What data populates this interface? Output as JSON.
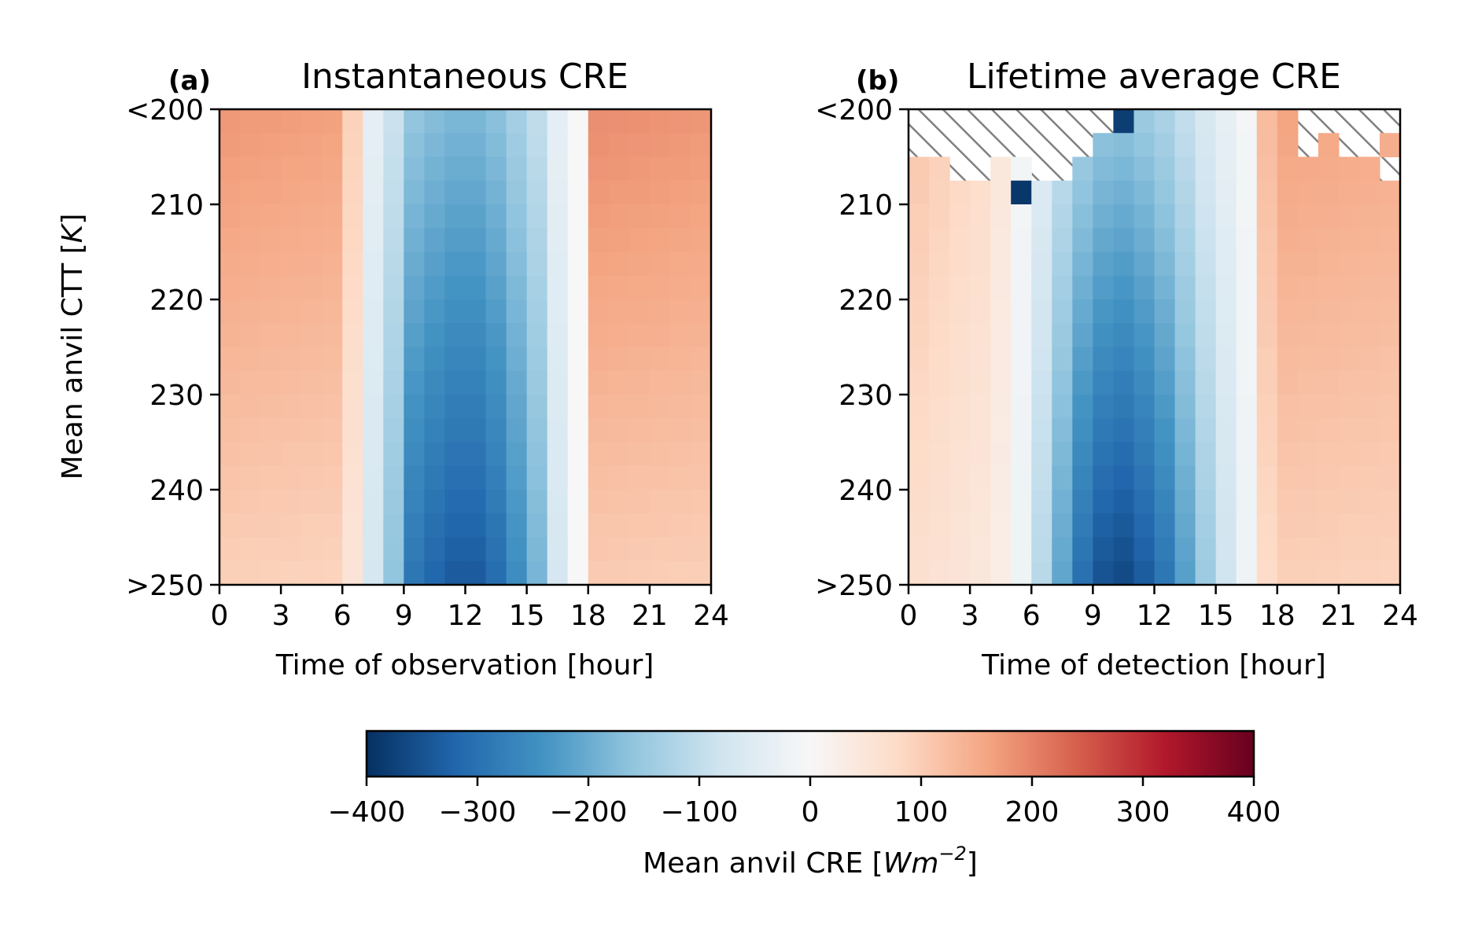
{
  "chart_data": [
    {
      "type": "heatmap",
      "panel_label": "(a)",
      "title": "Instantaneous CRE",
      "xlabel": "Time of observation [hour]",
      "ylabel": "Mean anvil CTT [K]",
      "xlim": [
        0,
        24
      ],
      "x_ticks": [
        "0",
        "3",
        "6",
        "9",
        "12",
        "15",
        "18",
        "21",
        "24"
      ],
      "y_ticks": [
        "<200",
        "210",
        "220",
        "230",
        "240",
        ">250"
      ],
      "x_bins": 24,
      "y_bins": 20,
      "bin_hours": 1,
      "ctt_range": [
        200,
        250
      ],
      "cmap_range": [
        -400,
        400
      ],
      "missing_rows": 0,
      "values": []
    },
    {
      "type": "heatmap",
      "panel_label": "(b)",
      "title": "Lifetime average CRE",
      "xlabel": "Time of detection [hour]",
      "ylabel": "",
      "xlim": [
        0,
        24
      ],
      "x_ticks": [
        "0",
        "3",
        "6",
        "9",
        "12",
        "15",
        "18",
        "21",
        "24"
      ],
      "y_ticks": [
        "<200",
        "210",
        "220",
        "230",
        "240",
        ">250"
      ],
      "x_bins": 24,
      "y_bins": 20,
      "bin_hours": 1,
      "ctt_range": [
        200,
        250
      ],
      "cmap_range": [
        -400,
        400
      ],
      "missing_hatched": true,
      "values": []
    }
  ],
  "colorbar": {
    "label_prefix": "Mean anvil CRE [",
    "label_unit_W": "Wm",
    "label_exp": "−2",
    "label_suffix": "]",
    "range": [
      -400,
      400
    ],
    "ticks": [
      "−400",
      "−300",
      "−200",
      "−100",
      "0",
      "100",
      "200",
      "300",
      "400"
    ],
    "colormap": "RdBu_r",
    "stops": [
      "#053061",
      "#2166ac",
      "#4393c3",
      "#92c5de",
      "#d1e5f0",
      "#f7f7f7",
      "#fddbc7",
      "#f4a582",
      "#d6604d",
      "#b2182b",
      "#67001f"
    ]
  },
  "labels": {
    "a_tag": "(a)",
    "a_title": "Instantaneous CRE",
    "a_xlabel": "Time of observation [hour]",
    "ylabel_main": "Mean anvil CTT [",
    "ylabel_unit": "K",
    "ylabel_end": "]",
    "b_tag": "(b)",
    "b_title": "Lifetime average CRE",
    "b_xlabel": "Time of detection [hour]"
  }
}
